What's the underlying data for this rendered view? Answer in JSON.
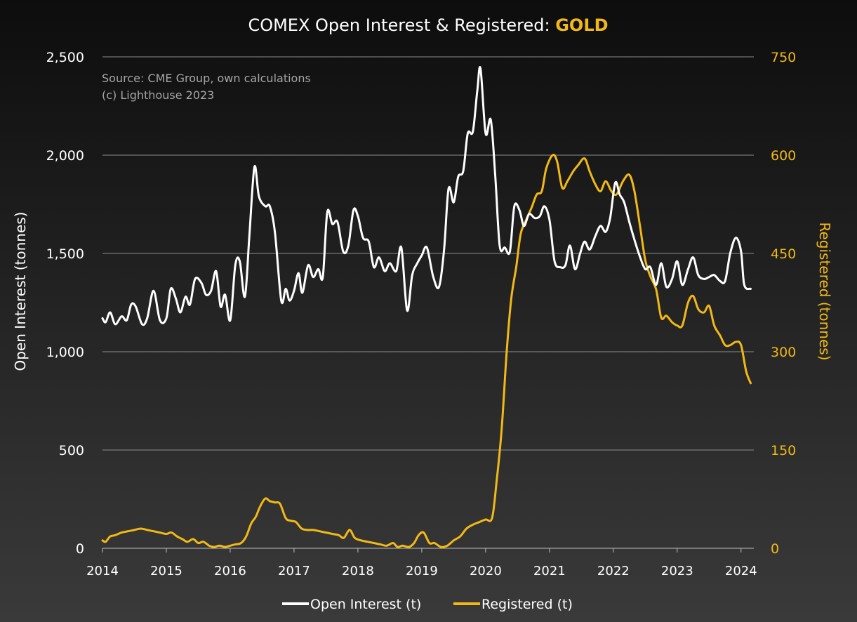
{
  "colors": {
    "open_interest": "#ffffff",
    "registered": "#f2b916",
    "accent": "#f2b916"
  },
  "chart_data": {
    "type": "line",
    "title": "COMEX Open Interest & Registered: ",
    "title_accent": "GOLD",
    "source_lines": [
      "Source: CME Group, own calculations",
      "(c) Lighthouse 2023"
    ],
    "xlabel": "",
    "ylabel_left": "Open Interest (tonnes)",
    "ylabel_right": "Registered (tonnes)",
    "xlim": [
      2014,
      2024.2
    ],
    "ylim_left": [
      0,
      2500
    ],
    "ylim_right": [
      0,
      750
    ],
    "x_ticks": [
      "2014",
      "2015",
      "2016",
      "2017",
      "2018",
      "2019",
      "2020",
      "2021",
      "2022",
      "2023",
      "2024"
    ],
    "y_ticks_left": [
      "0",
      "500",
      "1,000",
      "1,500",
      "2,000",
      "2,500"
    ],
    "y_ticks_right": [
      "0",
      "150",
      "300",
      "450",
      "600",
      "750"
    ],
    "grid": true,
    "legend_position": "bottom",
    "series": [
      {
        "name": "Open Interest (t)",
        "axis": "left",
        "points": [
          [
            2014.0,
            1170
          ],
          [
            2014.05,
            1150
          ],
          [
            2014.12,
            1200
          ],
          [
            2014.2,
            1140
          ],
          [
            2014.3,
            1180
          ],
          [
            2014.38,
            1160
          ],
          [
            2014.45,
            1240
          ],
          [
            2014.52,
            1230
          ],
          [
            2014.62,
            1140
          ],
          [
            2014.7,
            1170
          ],
          [
            2014.8,
            1310
          ],
          [
            2014.9,
            1160
          ],
          [
            2015.0,
            1170
          ],
          [
            2015.07,
            1320
          ],
          [
            2015.15,
            1270
          ],
          [
            2015.22,
            1200
          ],
          [
            2015.3,
            1280
          ],
          [
            2015.37,
            1240
          ],
          [
            2015.45,
            1370
          ],
          [
            2015.55,
            1350
          ],
          [
            2015.62,
            1290
          ],
          [
            2015.7,
            1310
          ],
          [
            2015.78,
            1410
          ],
          [
            2015.85,
            1230
          ],
          [
            2015.92,
            1290
          ],
          [
            2016.0,
            1160
          ],
          [
            2016.08,
            1440
          ],
          [
            2016.15,
            1460
          ],
          [
            2016.23,
            1280
          ],
          [
            2016.3,
            1590
          ],
          [
            2016.38,
            1940
          ],
          [
            2016.45,
            1790
          ],
          [
            2016.55,
            1740
          ],
          [
            2016.62,
            1740
          ],
          [
            2016.7,
            1610
          ],
          [
            2016.8,
            1260
          ],
          [
            2016.87,
            1320
          ],
          [
            2016.93,
            1260
          ],
          [
            2017.0,
            1310
          ],
          [
            2017.07,
            1400
          ],
          [
            2017.13,
            1300
          ],
          [
            2017.22,
            1440
          ],
          [
            2017.3,
            1380
          ],
          [
            2017.38,
            1420
          ],
          [
            2017.45,
            1380
          ],
          [
            2017.52,
            1710
          ],
          [
            2017.6,
            1650
          ],
          [
            2017.68,
            1660
          ],
          [
            2017.77,
            1510
          ],
          [
            2017.85,
            1540
          ],
          [
            2017.93,
            1720
          ],
          [
            2018.0,
            1690
          ],
          [
            2018.08,
            1580
          ],
          [
            2018.17,
            1560
          ],
          [
            2018.25,
            1430
          ],
          [
            2018.33,
            1480
          ],
          [
            2018.42,
            1410
          ],
          [
            2018.5,
            1450
          ],
          [
            2018.6,
            1410
          ],
          [
            2018.68,
            1530
          ],
          [
            2018.77,
            1210
          ],
          [
            2018.85,
            1390
          ],
          [
            2018.93,
            1450
          ],
          [
            2019.0,
            1490
          ],
          [
            2019.08,
            1530
          ],
          [
            2019.18,
            1380
          ],
          [
            2019.27,
            1330
          ],
          [
            2019.35,
            1520
          ],
          [
            2019.42,
            1830
          ],
          [
            2019.5,
            1760
          ],
          [
            2019.57,
            1890
          ],
          [
            2019.65,
            1920
          ],
          [
            2019.72,
            2110
          ],
          [
            2019.8,
            2120
          ],
          [
            2019.87,
            2330
          ],
          [
            2019.92,
            2440
          ],
          [
            2020.0,
            2110
          ],
          [
            2020.08,
            2180
          ],
          [
            2020.15,
            1900
          ],
          [
            2020.22,
            1540
          ],
          [
            2020.3,
            1530
          ],
          [
            2020.38,
            1510
          ],
          [
            2020.45,
            1740
          ],
          [
            2020.53,
            1720
          ],
          [
            2020.6,
            1640
          ],
          [
            2020.68,
            1700
          ],
          [
            2020.77,
            1680
          ],
          [
            2020.85,
            1690
          ],
          [
            2020.92,
            1740
          ],
          [
            2021.0,
            1670
          ],
          [
            2021.08,
            1460
          ],
          [
            2021.17,
            1430
          ],
          [
            2021.25,
            1440
          ],
          [
            2021.32,
            1540
          ],
          [
            2021.4,
            1420
          ],
          [
            2021.48,
            1500
          ],
          [
            2021.55,
            1560
          ],
          [
            2021.63,
            1520
          ],
          [
            2021.72,
            1590
          ],
          [
            2021.8,
            1640
          ],
          [
            2021.88,
            1610
          ],
          [
            2021.95,
            1680
          ],
          [
            2022.03,
            1860
          ],
          [
            2022.1,
            1800
          ],
          [
            2022.17,
            1760
          ],
          [
            2022.25,
            1660
          ],
          [
            2022.33,
            1570
          ],
          [
            2022.42,
            1480
          ],
          [
            2022.5,
            1420
          ],
          [
            2022.58,
            1430
          ],
          [
            2022.67,
            1340
          ],
          [
            2022.75,
            1450
          ],
          [
            2022.83,
            1330
          ],
          [
            2022.92,
            1370
          ],
          [
            2023.0,
            1460
          ],
          [
            2023.08,
            1340
          ],
          [
            2023.17,
            1420
          ],
          [
            2023.25,
            1480
          ],
          [
            2023.33,
            1390
          ],
          [
            2023.42,
            1370
          ],
          [
            2023.5,
            1380
          ],
          [
            2023.58,
            1390
          ],
          [
            2023.67,
            1360
          ],
          [
            2023.75,
            1360
          ],
          [
            2023.83,
            1500
          ],
          [
            2023.92,
            1580
          ],
          [
            2024.0,
            1510
          ],
          [
            2024.05,
            1340
          ],
          [
            2024.15,
            1320
          ]
        ]
      },
      {
        "name": "Registered (t)",
        "axis": "right",
        "points": [
          [
            2014.0,
            12
          ],
          [
            2014.05,
            10
          ],
          [
            2014.12,
            18
          ],
          [
            2014.2,
            20
          ],
          [
            2014.3,
            24
          ],
          [
            2014.4,
            26
          ],
          [
            2014.5,
            28
          ],
          [
            2014.6,
            30
          ],
          [
            2014.7,
            28
          ],
          [
            2014.8,
            26
          ],
          [
            2014.9,
            24
          ],
          [
            2015.0,
            22
          ],
          [
            2015.08,
            24
          ],
          [
            2015.17,
            18
          ],
          [
            2015.25,
            14
          ],
          [
            2015.33,
            10
          ],
          [
            2015.42,
            14
          ],
          [
            2015.5,
            8
          ],
          [
            2015.58,
            10
          ],
          [
            2015.67,
            4
          ],
          [
            2015.75,
            2
          ],
          [
            2015.83,
            4
          ],
          [
            2015.92,
            2
          ],
          [
            2016.0,
            4
          ],
          [
            2016.08,
            6
          ],
          [
            2016.17,
            8
          ],
          [
            2016.25,
            18
          ],
          [
            2016.33,
            38
          ],
          [
            2016.4,
            48
          ],
          [
            2016.47,
            64
          ],
          [
            2016.55,
            76
          ],
          [
            2016.62,
            72
          ],
          [
            2016.7,
            70
          ],
          [
            2016.78,
            68
          ],
          [
            2016.87,
            46
          ],
          [
            2016.95,
            42
          ],
          [
            2017.03,
            40
          ],
          [
            2017.12,
            30
          ],
          [
            2017.22,
            28
          ],
          [
            2017.3,
            28
          ],
          [
            2017.4,
            26
          ],
          [
            2017.5,
            24
          ],
          [
            2017.6,
            22
          ],
          [
            2017.7,
            20
          ],
          [
            2017.78,
            16
          ],
          [
            2017.87,
            28
          ],
          [
            2017.95,
            16
          ],
          [
            2018.05,
            12
          ],
          [
            2018.15,
            10
          ],
          [
            2018.25,
            8
          ],
          [
            2018.35,
            6
          ],
          [
            2018.45,
            4
          ],
          [
            2018.55,
            8
          ],
          [
            2018.62,
            2
          ],
          [
            2018.7,
            4
          ],
          [
            2018.8,
            2
          ],
          [
            2018.88,
            8
          ],
          [
            2018.95,
            20
          ],
          [
            2019.03,
            24
          ],
          [
            2019.12,
            8
          ],
          [
            2019.2,
            8
          ],
          [
            2019.3,
            2
          ],
          [
            2019.4,
            4
          ],
          [
            2019.5,
            12
          ],
          [
            2019.6,
            18
          ],
          [
            2019.7,
            30
          ],
          [
            2019.8,
            36
          ],
          [
            2019.9,
            40
          ],
          [
            2020.0,
            44
          ],
          [
            2020.1,
            46
          ],
          [
            2020.17,
            100
          ],
          [
            2020.25,
            180
          ],
          [
            2020.33,
            300
          ],
          [
            2020.4,
            380
          ],
          [
            2020.48,
            430
          ],
          [
            2020.55,
            480
          ],
          [
            2020.63,
            500
          ],
          [
            2020.72,
            520
          ],
          [
            2020.8,
            540
          ],
          [
            2020.88,
            545
          ],
          [
            2020.95,
            580
          ],
          [
            2021.05,
            600
          ],
          [
            2021.12,
            590
          ],
          [
            2021.2,
            550
          ],
          [
            2021.28,
            560
          ],
          [
            2021.37,
            575
          ],
          [
            2021.45,
            585
          ],
          [
            2021.55,
            595
          ],
          [
            2021.63,
            575
          ],
          [
            2021.72,
            555
          ],
          [
            2021.8,
            545
          ],
          [
            2021.88,
            560
          ],
          [
            2021.97,
            545
          ],
          [
            2022.05,
            540
          ],
          [
            2022.15,
            560
          ],
          [
            2022.25,
            570
          ],
          [
            2022.33,
            545
          ],
          [
            2022.42,
            490
          ],
          [
            2022.5,
            440
          ],
          [
            2022.58,
            415
          ],
          [
            2022.67,
            395
          ],
          [
            2022.75,
            352
          ],
          [
            2022.83,
            355
          ],
          [
            2022.92,
            345
          ],
          [
            2023.0,
            340
          ],
          [
            2023.08,
            340
          ],
          [
            2023.17,
            375
          ],
          [
            2023.25,
            385
          ],
          [
            2023.33,
            365
          ],
          [
            2023.42,
            360
          ],
          [
            2023.5,
            370
          ],
          [
            2023.58,
            340
          ],
          [
            2023.67,
            325
          ],
          [
            2023.75,
            310
          ],
          [
            2023.83,
            310
          ],
          [
            2023.92,
            315
          ],
          [
            2024.0,
            310
          ],
          [
            2024.08,
            270
          ],
          [
            2024.15,
            252
          ]
        ]
      }
    ]
  }
}
